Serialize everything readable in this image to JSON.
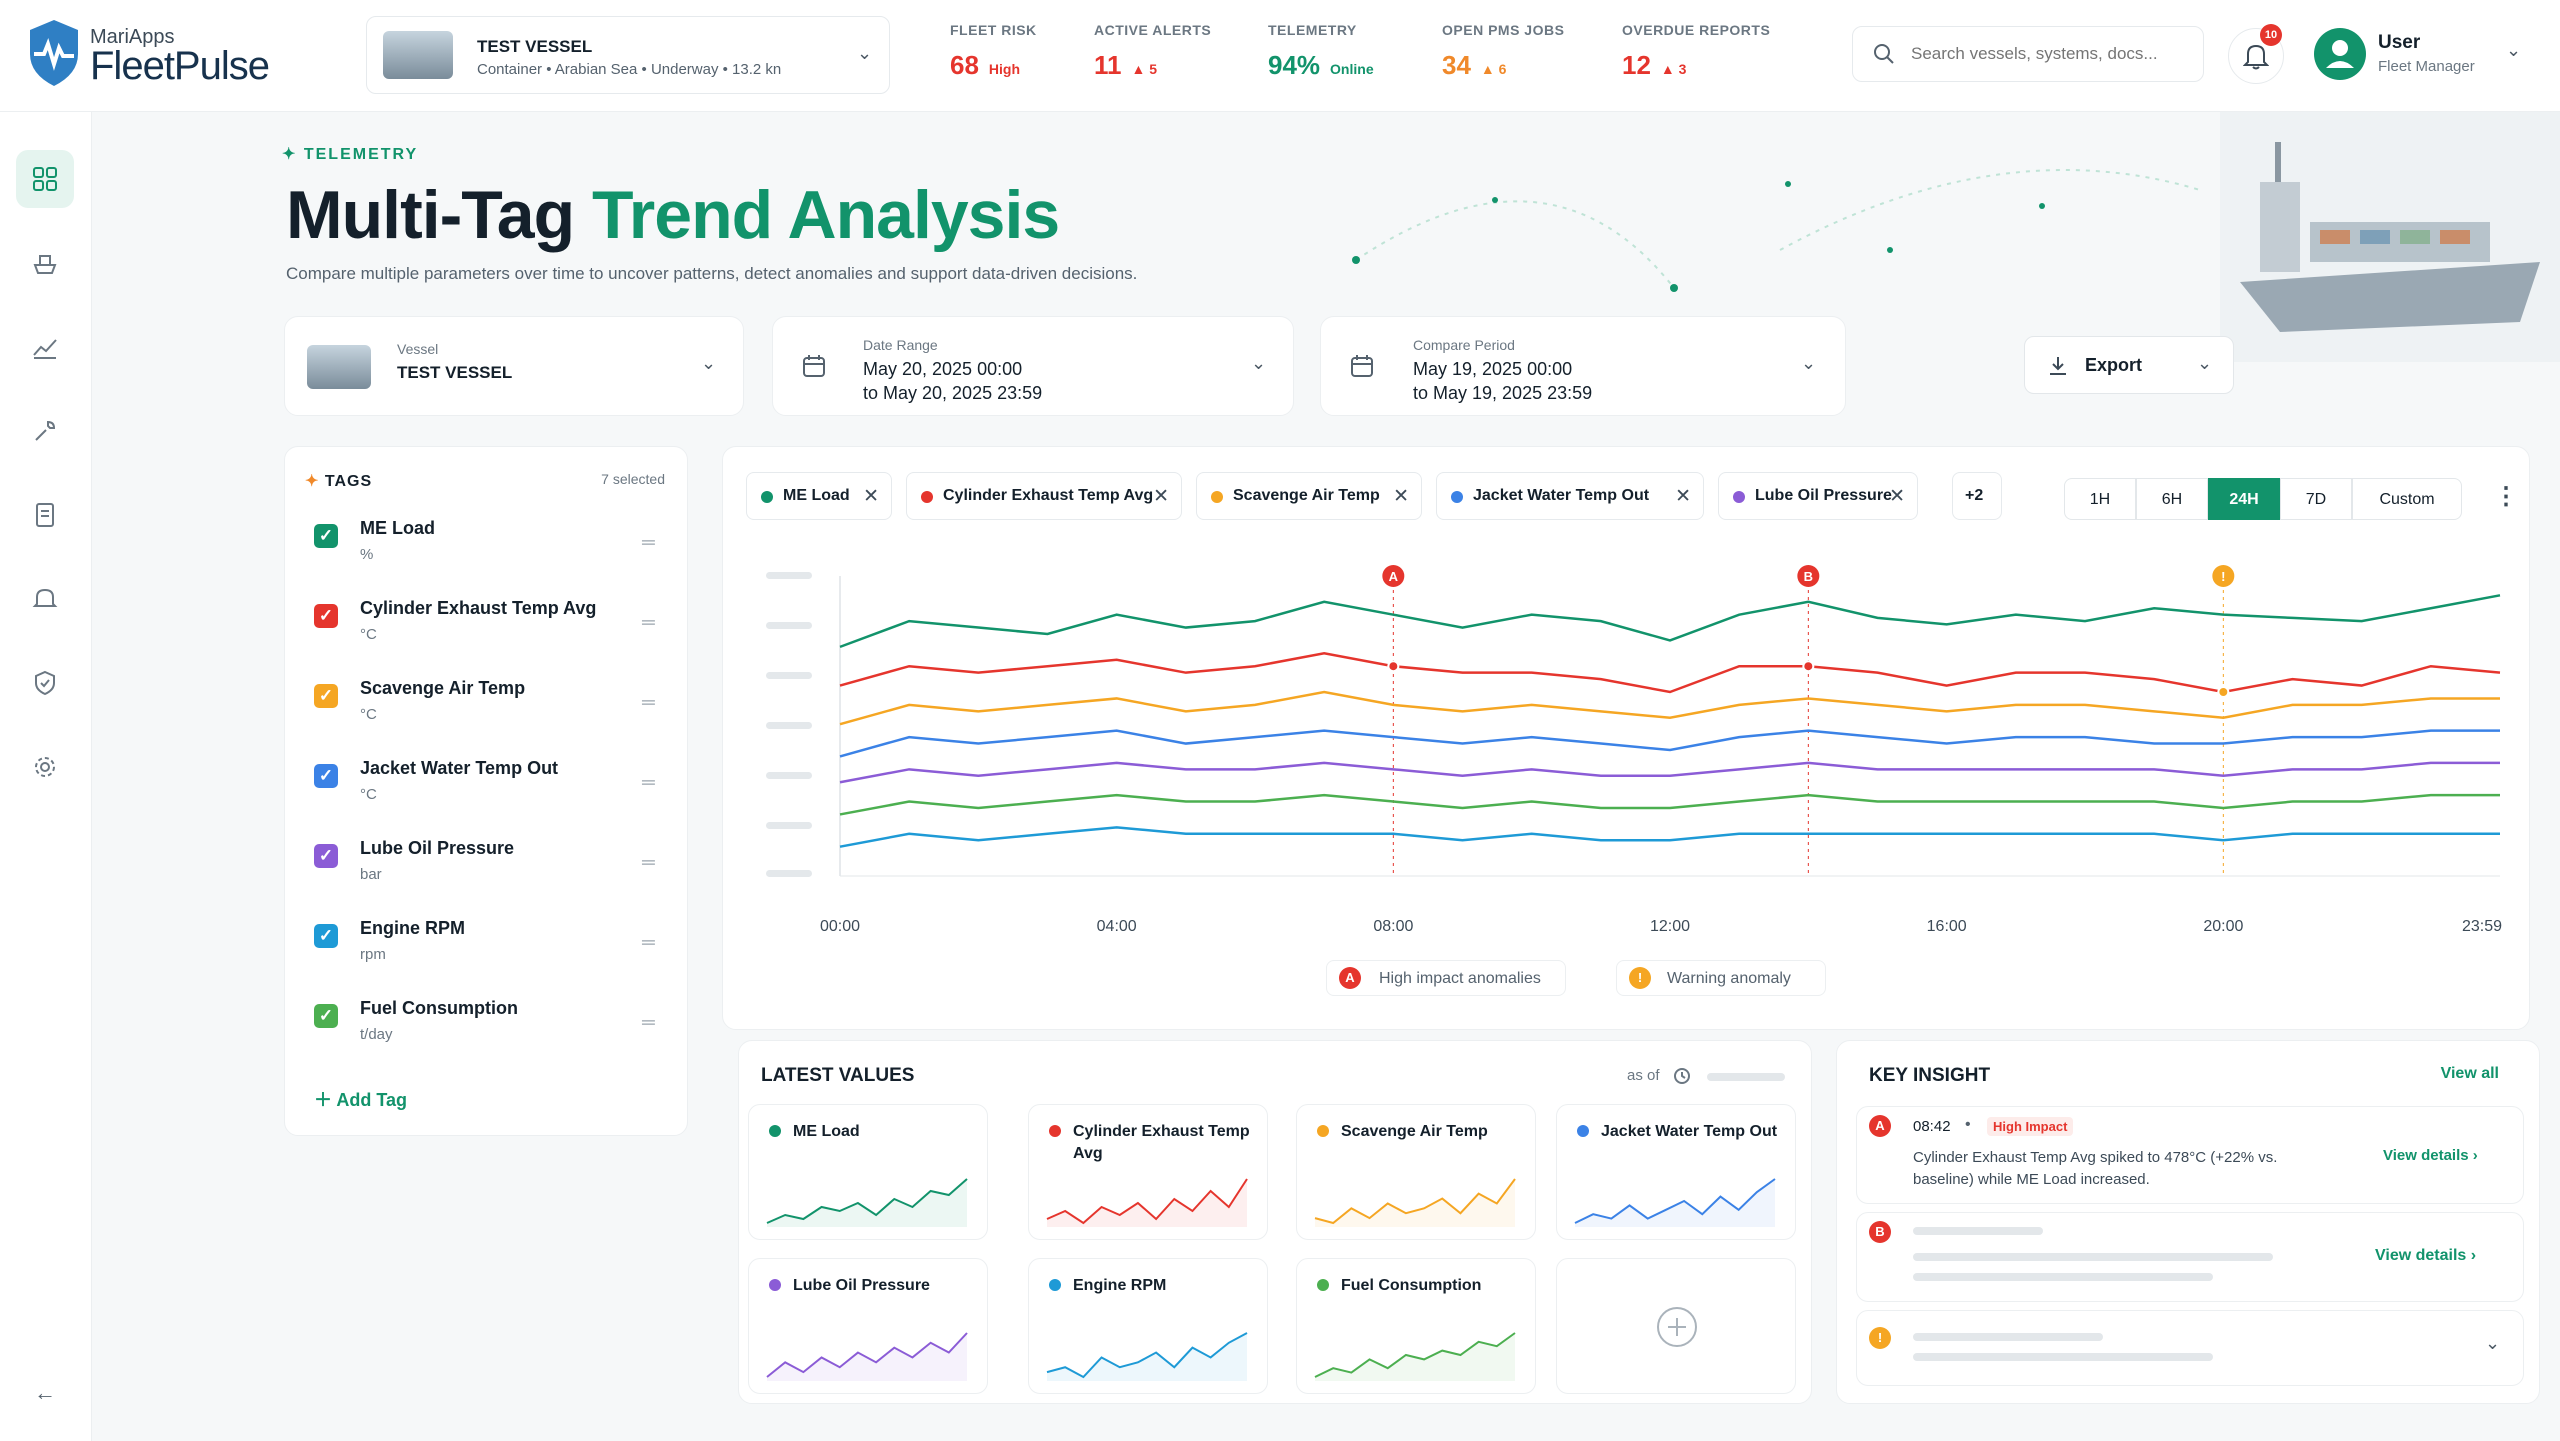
{
  "brand": {
    "small": "MariApps",
    "name": "FleetPulse"
  },
  "vessel_selector": {
    "name": "TEST VESSEL",
    "details": "Container • Arabian Sea • Underway • 13.2 kn"
  },
  "kpis": [
    {
      "label": "FLEET RISK",
      "value": "68",
      "sub": "High"
    },
    {
      "label": "ACTIVE ALERTS",
      "value": "11",
      "sub": "▲ 5"
    },
    {
      "label": "TELEMETRY",
      "value": "94%",
      "sub": "Online"
    },
    {
      "label": "OPEN PMS JOBS",
      "value": "34",
      "sub": "▲ 6"
    },
    {
      "label": "OVERDUE REPORTS",
      "value": "12",
      "sub": "▲ 3"
    }
  ],
  "search": {
    "placeholder": "Search vessels, systems, docs..."
  },
  "notifications": {
    "count": "10"
  },
  "user": {
    "name": "User",
    "role": "Fleet Manager"
  },
  "page": {
    "eyebrow": "TELEMETRY",
    "title_a": "Multi-Tag ",
    "title_b": "Trend Analysis",
    "subtitle": "Compare multiple parameters over time to uncover patterns, detect anomalies and support data-driven decisions."
  },
  "filters": {
    "vessel": {
      "label": "Vessel",
      "value": "TEST VESSEL"
    },
    "date_range": {
      "label": "Date Range",
      "from": "May 20, 2025  00:00",
      "to": "to May 20, 2025  23:59"
    },
    "compare": {
      "label": "Compare Period",
      "from": "May 19, 2025  00:00",
      "to": "to May 19, 2025  23:59"
    },
    "export_label": "Export"
  },
  "tags_panel": {
    "title": "TAGS",
    "selected": "7 selected",
    "add_label": "Add Tag",
    "items": [
      {
        "name": "ME Load",
        "unit": "%",
        "color": "#12936b"
      },
      {
        "name": "Cylinder Exhaust Temp Avg",
        "unit": "°C",
        "color": "#e5352d"
      },
      {
        "name": "Scavenge Air Temp",
        "unit": "°C",
        "color": "#f5a623"
      },
      {
        "name": "Jacket Water Temp Out",
        "unit": "°C",
        "color": "#3b82e6"
      },
      {
        "name": "Lube Oil Pressure",
        "unit": "bar",
        "color": "#8b5cd6"
      },
      {
        "name": "Engine RPM",
        "unit": "rpm",
        "color": "#1e9ad6"
      },
      {
        "name": "Fuel Consumption",
        "unit": "t/day",
        "color": "#4caf50"
      }
    ]
  },
  "chart": {
    "chips": [
      {
        "name": "ME Load",
        "color": "#12936b"
      },
      {
        "name": "Cylinder Exhaust Temp Avg",
        "color": "#e5352d"
      },
      {
        "name": "Scavenge Air Temp",
        "color": "#f5a623"
      },
      {
        "name": "Jacket Water Temp Out",
        "color": "#3b82e6"
      },
      {
        "name": "Lube Oil Pressure",
        "color": "#8b5cd6"
      }
    ],
    "more": "+2",
    "ranges": [
      "1H",
      "6H",
      "24H",
      "7D",
      "Custom"
    ],
    "active_range": "24H",
    "legend_high": "High impact anomalies",
    "legend_warn": "Warning anomaly"
  },
  "chart_data": {
    "type": "line",
    "x": [
      "00:00",
      "01:00",
      "02:00",
      "03:00",
      "04:00",
      "05:00",
      "06:00",
      "07:00",
      "08:00",
      "09:00",
      "10:00",
      "11:00",
      "12:00",
      "13:00",
      "14:00",
      "15:00",
      "16:00",
      "17:00",
      "18:00",
      "19:00",
      "20:00",
      "21:00",
      "22:00",
      "23:00",
      "23:59"
    ],
    "xticks": [
      "00:00",
      "04:00",
      "08:00",
      "12:00",
      "16:00",
      "20:00",
      "23:59"
    ],
    "grid": false,
    "y_tick_labels_visible": false,
    "series": [
      {
        "name": "ME Load",
        "color": "#12936b",
        "values": [
          78,
          86,
          84,
          82,
          88,
          84,
          86,
          92,
          88,
          84,
          88,
          86,
          80,
          88,
          92,
          87,
          85,
          88,
          86,
          90,
          88,
          87,
          86,
          90,
          94
        ]
      },
      {
        "name": "Cylinder Exhaust Temp Avg",
        "color": "#e5352d",
        "values": [
          66,
          72,
          70,
          72,
          74,
          70,
          72,
          76,
          72,
          70,
          70,
          68,
          64,
          72,
          72,
          70,
          66,
          70,
          70,
          68,
          64,
          68,
          66,
          72,
          70
        ]
      },
      {
        "name": "Scavenge Air Temp",
        "color": "#f5a623",
        "values": [
          54,
          60,
          58,
          60,
          62,
          58,
          60,
          64,
          60,
          58,
          60,
          58,
          56,
          60,
          62,
          60,
          58,
          60,
          60,
          58,
          56,
          60,
          60,
          62,
          62
        ]
      },
      {
        "name": "Jacket Water Temp Out",
        "color": "#3b82e6",
        "values": [
          44,
          50,
          48,
          50,
          52,
          48,
          50,
          52,
          50,
          48,
          50,
          48,
          46,
          50,
          52,
          50,
          48,
          50,
          50,
          48,
          48,
          50,
          50,
          52,
          52
        ]
      },
      {
        "name": "Lube Oil Pressure",
        "color": "#8b5cd6",
        "values": [
          36,
          40,
          38,
          40,
          42,
          40,
          40,
          42,
          40,
          38,
          40,
          38,
          38,
          40,
          42,
          40,
          40,
          40,
          40,
          40,
          38,
          40,
          40,
          42,
          42
        ]
      },
      {
        "name": "Engine RPM",
        "color": "#4caf50",
        "values": [
          26,
          30,
          28,
          30,
          32,
          30,
          30,
          32,
          30,
          28,
          30,
          28,
          28,
          30,
          32,
          30,
          30,
          30,
          30,
          30,
          28,
          30,
          30,
          32,
          32
        ]
      },
      {
        "name": "Fuel Consumption",
        "color": "#1e9ad6",
        "values": [
          16,
          20,
          18,
          20,
          22,
          20,
          20,
          20,
          20,
          18,
          20,
          18,
          18,
          20,
          20,
          20,
          20,
          20,
          20,
          20,
          18,
          20,
          20,
          20,
          20
        ]
      }
    ],
    "anomalies": [
      {
        "label": "A",
        "x": "08:00",
        "kind": "high"
      },
      {
        "label": "B",
        "x": "14:00",
        "kind": "high"
      },
      {
        "label": "!",
        "x": "20:00",
        "kind": "warning"
      }
    ]
  },
  "latest": {
    "title": "LATEST VALUES",
    "as_of": "as of",
    "cards": [
      {
        "name": "ME Load",
        "color": "#12936b",
        "values": [
          4,
          6,
          5,
          8,
          7,
          9,
          6,
          10,
          8,
          12,
          11,
          15
        ]
      },
      {
        "name": "Cylinder Exhaust Temp Avg",
        "color": "#e5352d",
        "values": [
          5,
          7,
          4,
          8,
          6,
          9,
          5,
          10,
          7,
          12,
          8,
          15
        ]
      },
      {
        "name": "Scavenge Air Temp",
        "color": "#f5a623",
        "values": [
          6,
          5,
          8,
          6,
          9,
          7,
          8,
          10,
          7,
          11,
          9,
          14
        ]
      },
      {
        "name": "Jacket Water Temp Out",
        "color": "#3b82e6",
        "values": [
          5,
          7,
          6,
          9,
          6,
          8,
          10,
          7,
          11,
          8,
          12,
          15
        ]
      },
      {
        "name": "Lube Oil Pressure",
        "color": "#8b5cd6",
        "values": [
          5,
          8,
          6,
          9,
          7,
          10,
          8,
          11,
          9,
          12,
          10,
          14
        ]
      },
      {
        "name": "Engine RPM",
        "color": "#1e9ad6",
        "values": [
          6,
          7,
          5,
          9,
          7,
          8,
          10,
          7,
          11,
          9,
          12,
          14
        ]
      },
      {
        "name": "Fuel Consumption",
        "color": "#4caf50",
        "values": [
          4,
          6,
          5,
          8,
          6,
          9,
          8,
          10,
          9,
          12,
          11,
          14
        ]
      }
    ]
  },
  "insight": {
    "title": "KEY INSIGHT",
    "view_all": "View all",
    "time": "08:42",
    "severity": "High Impact",
    "text": "Cylinder Exhaust Temp Avg spiked to 478°C (+22% vs. baseline) while ME Load increased.",
    "view_details": "View details"
  },
  "colors": {
    "accent": "#12936b",
    "danger": "#e5352d",
    "warning": "#f5a623"
  }
}
